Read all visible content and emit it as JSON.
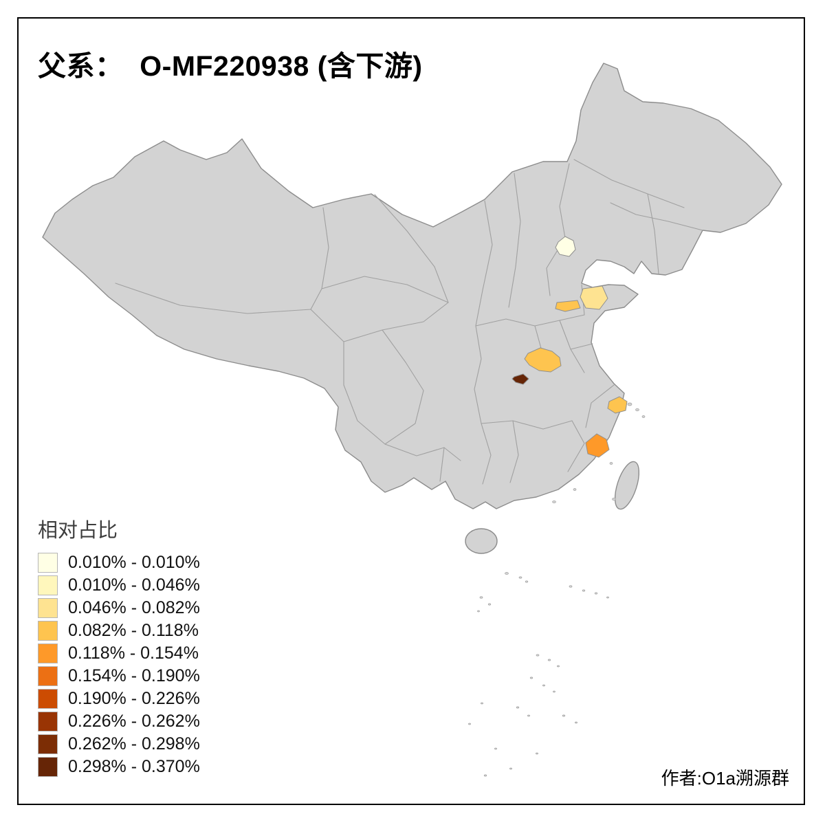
{
  "title": "父系：  O-MF220938 (含下游)",
  "credit": "作者:O1a溯源群",
  "legend": {
    "title": "相对占比",
    "items": [
      {
        "label": "0.010% - 0.010%",
        "color": "#FFFFE5"
      },
      {
        "label": "0.010% - 0.046%",
        "color": "#FFF7BC"
      },
      {
        "label": "0.046% - 0.082%",
        "color": "#FEE391"
      },
      {
        "label": "0.082% - 0.118%",
        "color": "#FEC44F"
      },
      {
        "label": "0.118% - 0.154%",
        "color": "#FE9929"
      },
      {
        "label": "0.154% - 0.190%",
        "color": "#EC7014"
      },
      {
        "label": "0.190% - 0.226%",
        "color": "#CC4C02"
      },
      {
        "label": "0.226% - 0.262%",
        "color": "#993404"
      },
      {
        "label": "0.262% - 0.298%",
        "color": "#7C2D05"
      },
      {
        "label": "0.298% - 0.370%",
        "color": "#662506"
      }
    ]
  },
  "map": {
    "base_fill": "#D3D3D3",
    "border_color": "#A0A0A0",
    "outline_color": "#8C8C8C",
    "background": "#FFFFFF",
    "highlighted_regions": [
      {
        "name": "beijing",
        "color": "#FFFFE5",
        "legend_class": "0.010% - 0.010%"
      },
      {
        "name": "shandong-west",
        "color": "#FEE391",
        "legend_class": "0.046% - 0.082%"
      },
      {
        "name": "henan-north-strip",
        "color": "#FEC44F",
        "legend_class": "0.082% - 0.118%"
      },
      {
        "name": "hubei-north",
        "color": "#FEC44F",
        "legend_class": "0.082% - 0.118%"
      },
      {
        "name": "hubei-west-dark",
        "color": "#662506",
        "legend_class": "0.298% - 0.370%"
      },
      {
        "name": "shanghai-area",
        "color": "#FEC44F",
        "legend_class": "0.082% - 0.118%"
      },
      {
        "name": "fujian-coastal",
        "color": "#FE9929",
        "legend_class": "0.118% - 0.154%"
      }
    ]
  },
  "chart_data": {
    "type": "choropleth",
    "title": "父系：  O-MF220938 (含下游)",
    "legend_title": "相对占比",
    "class_breaks_percent": [
      0.01,
      0.01,
      0.046,
      0.082,
      0.118,
      0.154,
      0.19,
      0.226,
      0.262,
      0.298,
      0.37
    ],
    "regions_colored": [
      {
        "region": "beijing",
        "range": "0.010% - 0.010%"
      },
      {
        "region": "shandong-west",
        "range": "0.046% - 0.082%"
      },
      {
        "region": "henan-north-strip",
        "range": "0.082% - 0.118%"
      },
      {
        "region": "hubei-north",
        "range": "0.082% - 0.118%"
      },
      {
        "region": "hubei-west-dark",
        "range": "0.298% - 0.370%"
      },
      {
        "region": "shanghai-area",
        "range": "0.082% - 0.118%"
      },
      {
        "region": "fujian-coastal",
        "range": "0.118% - 0.154%"
      }
    ]
  }
}
